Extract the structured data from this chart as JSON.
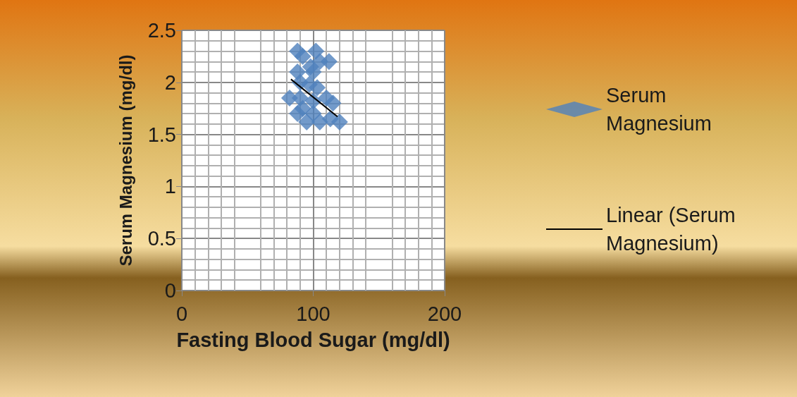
{
  "chart_data": {
    "type": "scatter",
    "xlabel": "Fasting Blood Sugar (mg/dl)",
    "ylabel": "Serum Magnesium (mg/dl)",
    "xlim": [
      0,
      200
    ],
    "xticks": [
      0,
      100,
      200
    ],
    "ylim": [
      0,
      2.5
    ],
    "yticks": [
      0,
      0.5,
      1,
      1.5,
      2,
      2.5
    ],
    "grid": true,
    "legend": "right",
    "marker": "diamond",
    "series": [
      {
        "name": "Serum Magnesium",
        "color": "#4f81bd",
        "x": [
          88,
          102,
          92,
          105,
          112,
          98,
          88,
          100,
          90,
          97,
          103,
          82,
          90,
          110,
          115,
          100,
          92,
          88,
          100,
          95,
          105,
          120,
          113
        ],
        "values": [
          2.3,
          2.3,
          2.25,
          2.2,
          2.2,
          2.15,
          2.1,
          2.1,
          2.0,
          1.98,
          1.95,
          1.85,
          1.85,
          1.85,
          1.8,
          1.82,
          1.75,
          1.7,
          1.7,
          1.62,
          1.62,
          1.62,
          1.65
        ]
      },
      {
        "name": "Linear (Serum Magnesium)",
        "type": "line",
        "color": "#000000",
        "line_style": "solid",
        "marker": "none",
        "x": [
          83,
          118.5
        ],
        "values": [
          2.03,
          1.67
        ]
      }
    ]
  }
}
